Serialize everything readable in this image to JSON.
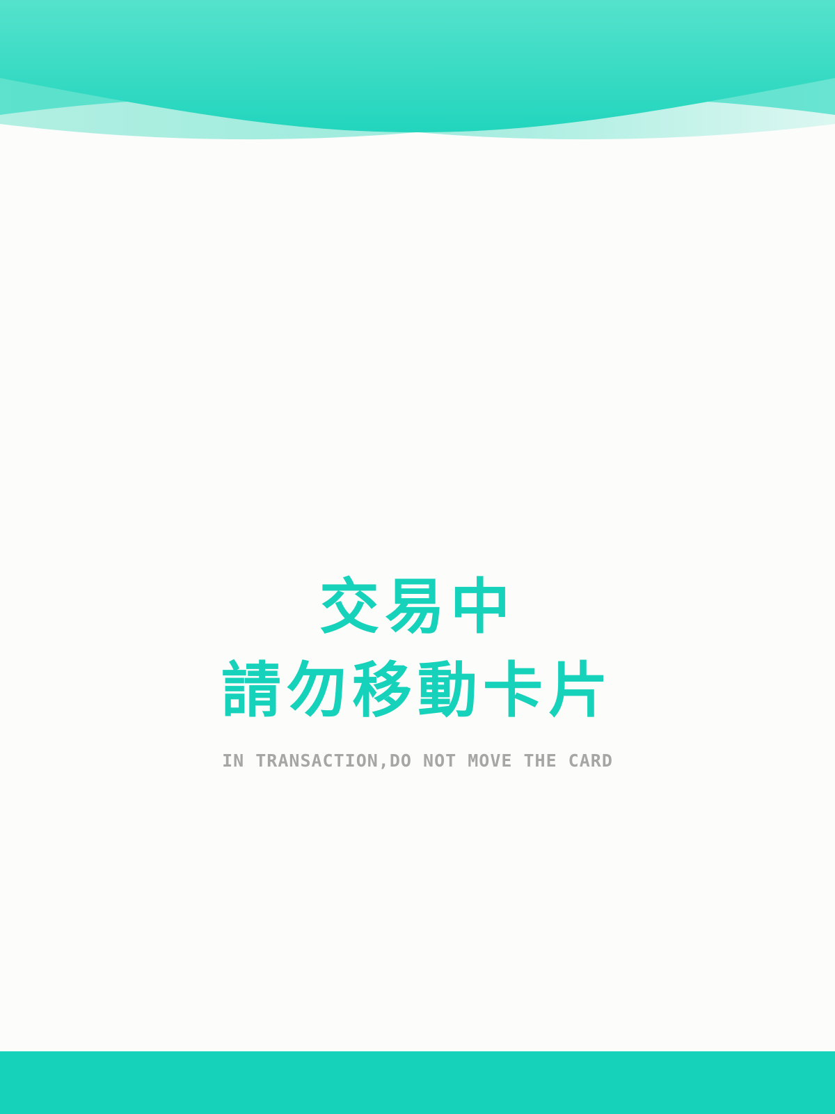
{
  "screen": {
    "title_line_1": "交易中",
    "title_line_2": "請勿移動卡片",
    "subtitle": "IN TRANSACTION,DO NOT MOVE THE CARD"
  },
  "theme": {
    "accent": "#16d2bb",
    "accent_light": "#55e2cc",
    "wave_pale": "#b9f1e4",
    "subtitle_color": "#a6a6a6",
    "background": "#fcfcfb"
  }
}
